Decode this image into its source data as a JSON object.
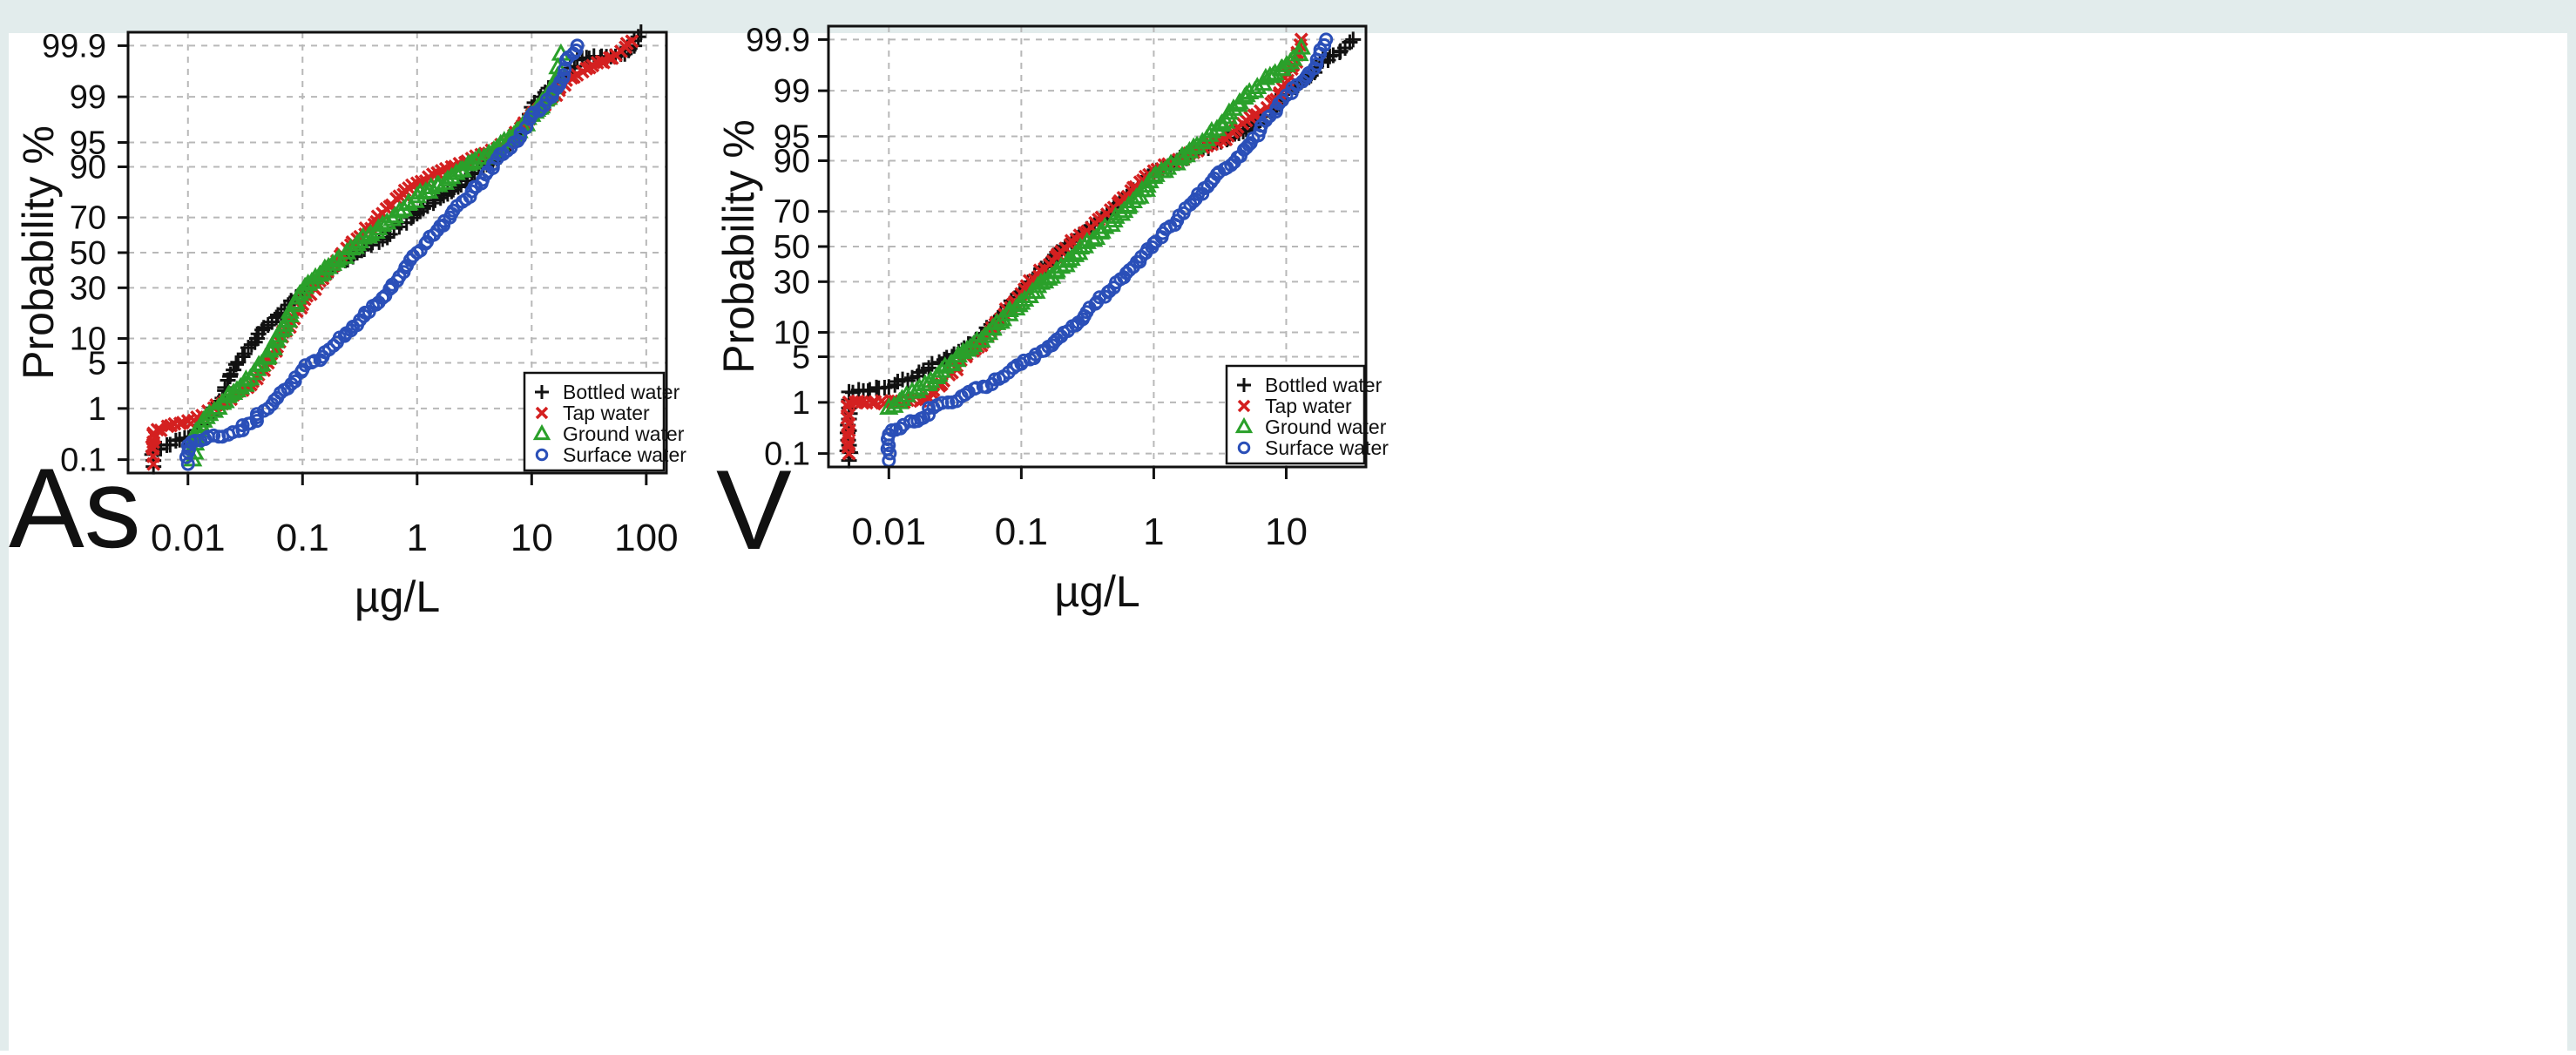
{
  "chart_data": [
    {
      "type": "scatter",
      "panel_label": "As",
      "xlabel": "µg/L",
      "ylabel": "Probability %",
      "x_scale": "log",
      "y_scale": "probability",
      "xlim": [
        0.003,
        150
      ],
      "ylim": [
        0.05,
        99.95
      ],
      "x_ticks": [
        0.01,
        0.1,
        1,
        10,
        100
      ],
      "x_tick_labels": [
        "0.01",
        "0.1",
        "1",
        "10",
        "100"
      ],
      "y_ticks": [
        0.1,
        1,
        5,
        10,
        30,
        50,
        70,
        90,
        95,
        99,
        99.9
      ],
      "y_tick_labels": [
        "0.1",
        "1",
        "5",
        "10",
        "30",
        "50",
        "70",
        "90",
        "95",
        "99",
        "99.9"
      ],
      "grid": true,
      "legend_position": "bottom-right",
      "series": [
        {
          "name": "Bottled water",
          "marker": "plus",
          "color": "#111111",
          "points": [
            [
              0.005,
              0.07
            ],
            [
              0.005,
              0.15
            ],
            [
              0.011,
              0.3
            ],
            [
              0.012,
              0.4
            ],
            [
              0.013,
              0.5
            ],
            [
              0.015,
              0.7
            ],
            [
              0.02,
              1.5
            ],
            [
              0.025,
              4
            ],
            [
              0.03,
              6
            ],
            [
              0.04,
              10
            ],
            [
              0.05,
              14
            ],
            [
              0.07,
              20
            ],
            [
              0.1,
              28
            ],
            [
              0.2,
              42
            ],
            [
              0.3,
              50
            ],
            [
              0.5,
              58
            ],
            [
              0.7,
              65
            ],
            [
              1,
              72
            ],
            [
              2,
              82
            ],
            [
              3,
              88
            ],
            [
              5,
              92
            ],
            [
              7,
              96
            ],
            [
              10,
              98.5
            ],
            [
              12,
              99
            ],
            [
              14,
              99.3
            ],
            [
              18,
              99.5
            ],
            [
              20,
              99.6
            ],
            [
              25,
              99.8
            ],
            [
              65,
              99.85
            ],
            [
              90,
              99.95
            ]
          ]
        },
        {
          "name": "Tap water",
          "marker": "x",
          "color": "#d42020",
          "points": [
            [
              0.005,
              0.08
            ],
            [
              0.005,
              0.35
            ],
            [
              0.01,
              0.6
            ],
            [
              0.012,
              0.7
            ],
            [
              0.015,
              0.9
            ],
            [
              0.02,
              1.2
            ],
            [
              0.03,
              2
            ],
            [
              0.04,
              3
            ],
            [
              0.05,
              5
            ],
            [
              0.06,
              8
            ],
            [
              0.08,
              15
            ],
            [
              0.1,
              22
            ],
            [
              0.15,
              35
            ],
            [
              0.2,
              45
            ],
            [
              0.3,
              58
            ],
            [
              0.5,
              72
            ],
            [
              0.7,
              80
            ],
            [
              1,
              85
            ],
            [
              2,
              90
            ],
            [
              3,
              92
            ],
            [
              5,
              94
            ],
            [
              7,
              96
            ],
            [
              10,
              98
            ],
            [
              15,
              99
            ],
            [
              20,
              99.5
            ],
            [
              30,
              99.7
            ],
            [
              75,
              99.92
            ]
          ]
        },
        {
          "name": "Ground water",
          "marker": "triangle",
          "color": "#2aa02a",
          "points": [
            [
              0.011,
              0.1
            ],
            [
              0.013,
              0.5
            ],
            [
              0.017,
              0.9
            ],
            [
              0.025,
              1.8
            ],
            [
              0.035,
              3
            ],
            [
              0.05,
              6
            ],
            [
              0.07,
              14
            ],
            [
              0.1,
              28
            ],
            [
              0.15,
              38
            ],
            [
              0.2,
              45
            ],
            [
              0.3,
              55
            ],
            [
              0.5,
              66
            ],
            [
              0.7,
              73
            ],
            [
              1,
              80
            ],
            [
              2,
              87
            ],
            [
              3,
              91
            ],
            [
              5,
              94
            ],
            [
              7,
              96
            ],
            [
              10,
              98
            ],
            [
              18,
              99.85
            ]
          ]
        },
        {
          "name": "Surface water",
          "marker": "circle",
          "color": "#2a4fb8",
          "points": [
            [
              0.01,
              0.08
            ],
            [
              0.01,
              0.2
            ],
            [
              0.015,
              0.3
            ],
            [
              0.02,
              0.3
            ],
            [
              0.03,
              0.4
            ],
            [
              0.03,
              0.5
            ],
            [
              0.04,
              0.6
            ],
            [
              0.04,
              0.7
            ],
            [
              0.04,
              0.8
            ],
            [
              0.05,
              1
            ],
            [
              0.06,
              1.5
            ],
            [
              0.08,
              2.5
            ],
            [
              0.1,
              4
            ],
            [
              0.15,
              6
            ],
            [
              0.2,
              9
            ],
            [
              0.3,
              14
            ],
            [
              0.5,
              25
            ],
            [
              0.7,
              36
            ],
            [
              1,
              50
            ],
            [
              1.5,
              63
            ],
            [
              2,
              72
            ],
            [
              3,
              82
            ],
            [
              5,
              92
            ],
            [
              7,
              95
            ],
            [
              10,
              98
            ],
            [
              15,
              99
            ],
            [
              20,
              99.8
            ],
            [
              25,
              99.9
            ]
          ]
        }
      ]
    },
    {
      "type": "scatter",
      "panel_label": "V",
      "xlabel": "µg/L",
      "ylabel": "Probability %",
      "x_scale": "log",
      "y_scale": "probability",
      "xlim": [
        0.0035,
        40
      ],
      "ylim": [
        0.05,
        99.95
      ],
      "x_ticks": [
        0.01,
        0.1,
        1,
        10
      ],
      "x_tick_labels": [
        "0.01",
        "0.1",
        "1",
        "10"
      ],
      "y_ticks": [
        0.1,
        1,
        5,
        10,
        30,
        50,
        70,
        90,
        95,
        99,
        99.9
      ],
      "y_tick_labels": [
        "0.1",
        "1",
        "5",
        "10",
        "30",
        "50",
        "70",
        "90",
        "95",
        "99",
        "99.9"
      ],
      "grid": true,
      "legend_position": "bottom-right",
      "series": [
        {
          "name": "Bottled water",
          "marker": "plus",
          "color": "#111111",
          "points": [
            [
              0.005,
              0.07
            ],
            [
              0.005,
              0.15
            ],
            [
              0.005,
              0.3
            ],
            [
              0.005,
              0.5
            ],
            [
              0.005,
              0.8
            ],
            [
              0.005,
              1.1
            ],
            [
              0.005,
              1.5
            ],
            [
              0.01,
              1.8
            ],
            [
              0.015,
              2.5
            ],
            [
              0.02,
              3.5
            ],
            [
              0.03,
              5
            ],
            [
              0.05,
              9
            ],
            [
              0.07,
              15
            ],
            [
              0.1,
              25
            ],
            [
              0.15,
              38
            ],
            [
              0.2,
              48
            ],
            [
              0.3,
              58
            ],
            [
              0.5,
              72
            ],
            [
              0.7,
              80
            ],
            [
              1,
              86
            ],
            [
              1.5,
              90
            ],
            [
              2,
              92
            ],
            [
              3,
              94
            ],
            [
              5,
              96
            ],
            [
              8,
              98
            ],
            [
              10,
              99
            ],
            [
              13,
              99.3
            ],
            [
              18,
              99.7
            ],
            [
              32,
              99.9
            ]
          ]
        },
        {
          "name": "Tap water",
          "marker": "x",
          "color": "#d42020",
          "points": [
            [
              0.005,
              0.1
            ],
            [
              0.005,
              0.3
            ],
            [
              0.005,
              0.6
            ],
            [
              0.005,
              1.0
            ],
            [
              0.013,
              1.0
            ],
            [
              0.02,
              1.2
            ],
            [
              0.025,
              2
            ],
            [
              0.03,
              3
            ],
            [
              0.05,
              7
            ],
            [
              0.07,
              14
            ],
            [
              0.1,
              24
            ],
            [
              0.15,
              37
            ],
            [
              0.2,
              47
            ],
            [
              0.3,
              58
            ],
            [
              0.5,
              72
            ],
            [
              0.7,
              81
            ],
            [
              1,
              87
            ],
            [
              2,
              92
            ],
            [
              3,
              94
            ],
            [
              5,
              97
            ],
            [
              8,
              98.5
            ],
            [
              11,
              99.6
            ],
            [
              13,
              99.9
            ]
          ]
        },
        {
          "name": "Ground water",
          "marker": "triangle",
          "color": "#2aa02a",
          "points": [
            [
              0.01,
              0.8
            ],
            [
              0.012,
              1.0
            ],
            [
              0.015,
              1.5
            ],
            [
              0.02,
              2
            ],
            [
              0.03,
              4
            ],
            [
              0.05,
              8
            ],
            [
              0.07,
              13
            ],
            [
              0.1,
              20
            ],
            [
              0.15,
              30
            ],
            [
              0.2,
              38
            ],
            [
              0.3,
              50
            ],
            [
              0.5,
              65
            ],
            [
              0.7,
              75
            ],
            [
              1,
              85
            ],
            [
              2,
              93
            ],
            [
              3,
              96
            ],
            [
              4,
              98
            ],
            [
              5,
              98.8
            ],
            [
              7,
              99.4
            ],
            [
              13,
              99.85
            ]
          ]
        },
        {
          "name": "Surface water",
          "marker": "circle",
          "color": "#2a4fb8",
          "points": [
            [
              0.01,
              0.07
            ],
            [
              0.01,
              0.15
            ],
            [
              0.01,
              0.25
            ],
            [
              0.02,
              0.6
            ],
            [
              0.02,
              0.8
            ],
            [
              0.03,
              1.0
            ],
            [
              0.04,
              1.5
            ],
            [
              0.06,
              2
            ],
            [
              0.08,
              3
            ],
            [
              0.1,
              4
            ],
            [
              0.15,
              6
            ],
            [
              0.2,
              9
            ],
            [
              0.3,
              15
            ],
            [
              0.5,
              27
            ],
            [
              0.7,
              38
            ],
            [
              1,
              52
            ],
            [
              1.5,
              65
            ],
            [
              2,
              75
            ],
            [
              3,
              86
            ],
            [
              5,
              93
            ],
            [
              7,
              97
            ],
            [
              10,
              98.8
            ],
            [
              14,
              99.4
            ],
            [
              18,
              99.8
            ],
            [
              20,
              99.9
            ]
          ]
        }
      ]
    }
  ]
}
